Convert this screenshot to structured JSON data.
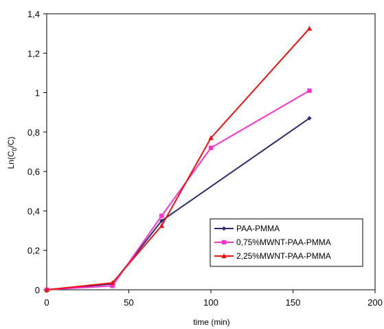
{
  "chart_data": {
    "type": "line",
    "title": "",
    "xlabel": "time (min)",
    "ylabel_main": "Ln(C",
    "ylabel_sub": "0",
    "ylabel_tail": "/C)",
    "xlim": [
      0,
      200
    ],
    "ylim": [
      0,
      1.4
    ],
    "xticks": [
      0,
      50,
      100,
      150,
      200
    ],
    "yticks": [
      0,
      0.2,
      0.4,
      0.6,
      0.8,
      1.0,
      1.2,
      1.4
    ],
    "xtick_labels": [
      "0",
      "50",
      "100",
      "150",
      "200"
    ],
    "ytick_labels": [
      "0",
      "0,2",
      "0,4",
      "0,6",
      "0,8",
      "1",
      "1,2",
      "1,4"
    ],
    "grid": false,
    "legend_position": "bottom-right",
    "series": [
      {
        "name": "PAA-PMMA",
        "color": "#2b2b6b",
        "marker": "diamond",
        "x": [
          0,
          40,
          70,
          160
        ],
        "y": [
          0,
          0.03,
          0.35,
          0.87
        ]
      },
      {
        "name": "0,75%MWNT-PAA-PMMA",
        "color": "#ff33cc",
        "marker": "square",
        "x": [
          0,
          40,
          70,
          100,
          160
        ],
        "y": [
          0,
          0.02,
          0.375,
          0.72,
          1.01
        ]
      },
      {
        "name": "2,25%MWNT-PAA-PMMA",
        "color": "#ee1111",
        "marker": "triangle",
        "x": [
          0,
          40,
          70,
          100,
          160
        ],
        "y": [
          0,
          0.035,
          0.325,
          0.77,
          1.325
        ]
      }
    ]
  }
}
